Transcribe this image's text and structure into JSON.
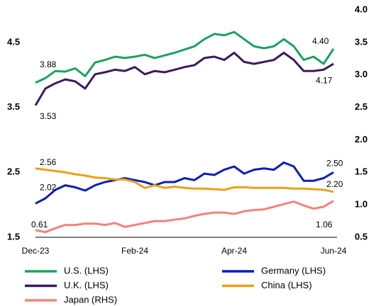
{
  "chart_data": {
    "type": "line",
    "categories": [
      "Dec-23",
      null,
      null,
      null,
      null,
      null,
      null,
      null,
      null,
      null,
      "Feb-24",
      null,
      null,
      null,
      null,
      null,
      null,
      null,
      null,
      null,
      "Apr-24",
      null,
      null,
      null,
      null,
      null,
      null,
      null,
      null,
      null,
      "Jun-24"
    ],
    "ylim": [
      1.5,
      5.0
    ],
    "yticks": [
      1.5,
      2.5,
      3.5,
      4.5
    ],
    "y2lim": [
      0.5,
      4.0
    ],
    "y2ticks": [
      0.5,
      {
        "value": 1,
        "label": "1.0"
      },
      1.5,
      {
        "value": 2,
        "label": "2.0"
      },
      2.5,
      {
        "value": 3,
        "label": "3.0"
      },
      3.5,
      {
        "value": 4,
        "label": "4.0"
      }
    ],
    "grid": false,
    "legend": "bottom",
    "series": [
      {
        "name": "U.S. (LHS)",
        "color": "#1aa35f",
        "values": [
          3.88,
          3.95,
          4.06,
          4.05,
          4.1,
          3.98,
          4.19,
          4.23,
          4.28,
          4.26,
          4.28,
          4.31,
          4.26,
          4.3,
          4.34,
          4.39,
          4.44,
          4.55,
          4.63,
          4.61,
          4.66,
          4.55,
          4.44,
          4.41,
          4.44,
          4.55,
          4.44,
          4.23,
          4.28,
          4.17,
          4.4
        ],
        "value_labels": [
          "3.88",
          null,
          null,
          null,
          null,
          null,
          null,
          null,
          null,
          null,
          null,
          null,
          null,
          null,
          null,
          null,
          null,
          null,
          null,
          null,
          null,
          null,
          null,
          null,
          null,
          null,
          null,
          null,
          null,
          null,
          "4.40"
        ]
      },
      {
        "name": "Germany (LHS)",
        "color": "#0a1fb8",
        "values": [
          2.02,
          2.1,
          2.23,
          2.3,
          2.27,
          2.22,
          2.3,
          2.35,
          2.38,
          2.41,
          2.38,
          2.35,
          2.3,
          2.35,
          2.35,
          2.41,
          2.38,
          2.48,
          2.46,
          2.54,
          2.59,
          2.48,
          2.54,
          2.56,
          2.54,
          2.65,
          2.59,
          2.37,
          2.37,
          2.41,
          2.5
        ],
        "value_labels": [
          "2.02",
          null,
          null,
          null,
          null,
          null,
          null,
          null,
          null,
          null,
          null,
          null,
          null,
          null,
          null,
          null,
          null,
          null,
          null,
          null,
          null,
          null,
          null,
          null,
          null,
          null,
          null,
          null,
          null,
          null,
          "2.50"
        ]
      },
      {
        "name": "U.K. (LHS)",
        "color": "#3a1c5c",
        "values": [
          3.53,
          3.79,
          3.87,
          3.93,
          3.9,
          3.79,
          4.01,
          4.04,
          4.08,
          4.06,
          4.12,
          4.01,
          4.06,
          4.04,
          4.08,
          4.12,
          4.15,
          4.26,
          4.28,
          4.23,
          4.34,
          4.2,
          4.17,
          4.2,
          4.23,
          4.34,
          4.23,
          4.06,
          4.06,
          4.08,
          4.17
        ],
        "value_labels": [
          "3.53",
          null,
          null,
          null,
          null,
          null,
          null,
          null,
          null,
          null,
          null,
          null,
          null,
          null,
          null,
          null,
          null,
          null,
          null,
          null,
          null,
          null,
          null,
          null,
          null,
          null,
          null,
          null,
          null,
          null,
          "4.17"
        ]
      },
      {
        "name": "China (LHS)",
        "color": "#e9a11a",
        "values": [
          2.56,
          2.54,
          2.52,
          2.5,
          2.47,
          2.45,
          2.42,
          2.41,
          2.39,
          2.39,
          2.35,
          2.26,
          2.3,
          2.26,
          2.28,
          2.26,
          2.25,
          2.25,
          2.24,
          2.23,
          2.27,
          2.27,
          2.26,
          2.26,
          2.26,
          2.26,
          2.25,
          2.25,
          2.24,
          2.23,
          2.2
        ],
        "value_labels": [
          "2.56",
          null,
          null,
          null,
          null,
          null,
          null,
          null,
          null,
          null,
          null,
          null,
          null,
          null,
          null,
          null,
          null,
          null,
          null,
          null,
          null,
          null,
          null,
          null,
          null,
          null,
          null,
          null,
          null,
          null,
          "2.20"
        ]
      },
      {
        "name": "Japan (RHS)",
        "color": "#f2827a",
        "axis": "y2",
        "values": [
          0.61,
          0.58,
          0.64,
          0.69,
          0.69,
          0.71,
          0.71,
          0.69,
          0.72,
          0.66,
          0.69,
          0.72,
          0.75,
          0.75,
          0.77,
          0.79,
          0.83,
          0.86,
          0.88,
          0.88,
          0.86,
          0.9,
          0.92,
          0.93,
          0.97,
          1.01,
          1.05,
          0.99,
          0.94,
          0.97,
          1.06
        ],
        "value_labels": [
          "0.61",
          null,
          null,
          null,
          null,
          null,
          null,
          null,
          null,
          null,
          null,
          null,
          null,
          null,
          null,
          null,
          null,
          null,
          null,
          null,
          null,
          null,
          null,
          null,
          null,
          null,
          null,
          null,
          null,
          null,
          "1.06"
        ]
      }
    ]
  }
}
